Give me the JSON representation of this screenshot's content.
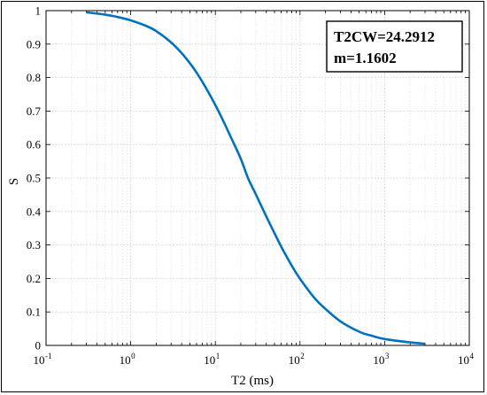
{
  "chart_data": {
    "type": "line",
    "xlabel": "T2 (ms)",
    "ylabel": "S",
    "xscale": "log",
    "xlim": [
      0.1,
      10000
    ],
    "ylim": [
      0,
      1
    ],
    "grid": true,
    "x_ticks": [
      {
        "base": "10",
        "exp": "-1",
        "value": 0.1
      },
      {
        "base": "10",
        "exp": "0",
        "value": 1
      },
      {
        "base": "10",
        "exp": "1",
        "value": 10
      },
      {
        "base": "10",
        "exp": "2",
        "value": 100
      },
      {
        "base": "10",
        "exp": "3",
        "value": 1000
      },
      {
        "base": "10",
        "exp": "4",
        "value": 10000
      }
    ],
    "y_ticks": [
      "0",
      "0.1",
      "0.2",
      "0.3",
      "0.4",
      "0.5",
      "0.6",
      "0.7",
      "0.8",
      "0.9",
      "1"
    ],
    "series": [
      {
        "color": "#0072BD",
        "x": [
          0.3,
          0.5,
          0.7,
          1,
          1.5,
          2,
          3,
          4,
          5,
          6,
          7,
          8,
          10,
          12,
          15,
          20,
          24.3,
          30,
          40,
          50,
          60,
          70,
          80,
          100,
          150,
          200,
          300,
          500,
          700,
          1000,
          2000,
          3000
        ],
        "y": [
          0.995,
          0.988,
          0.981,
          0.971,
          0.955,
          0.939,
          0.905,
          0.873,
          0.843,
          0.815,
          0.788,
          0.763,
          0.718,
          0.678,
          0.626,
          0.557,
          0.5,
          0.452,
          0.385,
          0.335,
          0.295,
          0.264,
          0.238,
          0.199,
          0.14,
          0.109,
          0.072,
          0.041,
          0.029,
          0.019,
          0.009,
          0.005
        ]
      }
    ],
    "annotation": {
      "lines": [
        "T2CW=24.2912",
        "m=1.1602"
      ],
      "position": "top-right"
    }
  }
}
